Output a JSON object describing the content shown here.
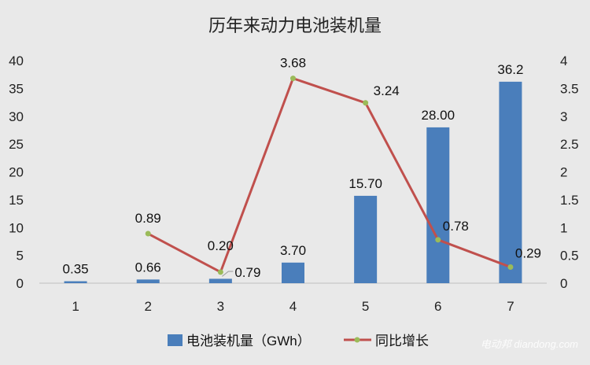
{
  "chart_data": {
    "type": "bar",
    "title": "历年来动力电池装机量",
    "categories": [
      "1",
      "2",
      "3",
      "4",
      "5",
      "6",
      "7"
    ],
    "series": [
      {
        "name": "电池装机量（GWh）",
        "type": "bar",
        "axis": "left",
        "color": "#4a7ebb",
        "values": [
          0.35,
          0.66,
          0.79,
          3.7,
          15.7,
          28.0,
          36.2
        ],
        "labels": [
          "0.35",
          "0.66",
          "0.79",
          "3.70",
          "15.70",
          "28.00",
          "36.2"
        ]
      },
      {
        "name": "同比增长",
        "type": "line",
        "axis": "right",
        "color": "#c0504d",
        "marker_color": "#9bbb59",
        "values": [
          null,
          0.89,
          0.2,
          3.68,
          3.24,
          0.78,
          0.29
        ],
        "labels": [
          "",
          "0.89",
          "0.20",
          "3.68",
          "3.24",
          "0.78",
          "0.29"
        ]
      }
    ],
    "y_left": {
      "min": 0,
      "max": 40,
      "step": 5,
      "ticks": [
        "0",
        "5",
        "10",
        "15",
        "20",
        "25",
        "30",
        "35",
        "40"
      ]
    },
    "y_right": {
      "min": 0,
      "max": 4,
      "step": 0.5,
      "ticks": [
        "0",
        "0.5",
        "1",
        "1.5",
        "2",
        "2.5",
        "3",
        "3.5",
        "4"
      ]
    },
    "grid": false,
    "legend_position": "bottom"
  },
  "watermark": "电动邦 diandong.com"
}
